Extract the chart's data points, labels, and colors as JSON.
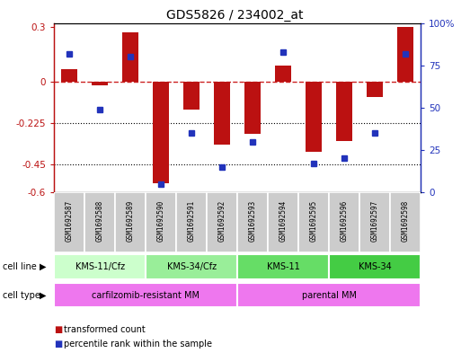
{
  "title": "GDS5826 / 234002_at",
  "samples": [
    "GSM1692587",
    "GSM1692588",
    "GSM1692589",
    "GSM1692590",
    "GSM1692591",
    "GSM1692592",
    "GSM1692593",
    "GSM1692594",
    "GSM1692595",
    "GSM1692596",
    "GSM1692597",
    "GSM1692598"
  ],
  "transformed_count": [
    0.07,
    -0.02,
    0.27,
    -0.55,
    -0.15,
    -0.34,
    -0.28,
    0.09,
    -0.38,
    -0.32,
    -0.08,
    0.3
  ],
  "percentile_rank": [
    82,
    49,
    80,
    5,
    35,
    15,
    30,
    83,
    17,
    20,
    35,
    82
  ],
  "ylim_left": [
    -0.6,
    0.32
  ],
  "ylim_right": [
    0,
    100
  ],
  "yticks_left": [
    0.3,
    0,
    -0.225,
    -0.45,
    -0.6
  ],
  "yticks_right": [
    100,
    75,
    50,
    25,
    0
  ],
  "hlines": [
    -0.225,
    -0.45
  ],
  "bar_color": "#bb1111",
  "dot_color": "#2233bb",
  "dashed_line_color": "#cc2222",
  "cell_line_groups": [
    {
      "label": "KMS-11/Cfz",
      "start": 0,
      "end": 3,
      "color": "#ccffcc"
    },
    {
      "label": "KMS-34/Cfz",
      "start": 3,
      "end": 6,
      "color": "#99ee99"
    },
    {
      "label": "KMS-11",
      "start": 6,
      "end": 9,
      "color": "#66dd66"
    },
    {
      "label": "KMS-34",
      "start": 9,
      "end": 12,
      "color": "#44cc44"
    }
  ],
  "cell_type_groups": [
    {
      "label": "carfilzomib-resistant MM",
      "start": 0,
      "end": 6,
      "color": "#ee77ee"
    },
    {
      "label": "parental MM",
      "start": 6,
      "end": 12,
      "color": "#ee77ee"
    }
  ],
  "legend_items": [
    {
      "color": "#bb1111",
      "label": "transformed count"
    },
    {
      "color": "#2233bb",
      "label": "percentile rank within the sample"
    }
  ],
  "sample_box_color": "#cccccc",
  "fig_bg": "#ffffff"
}
